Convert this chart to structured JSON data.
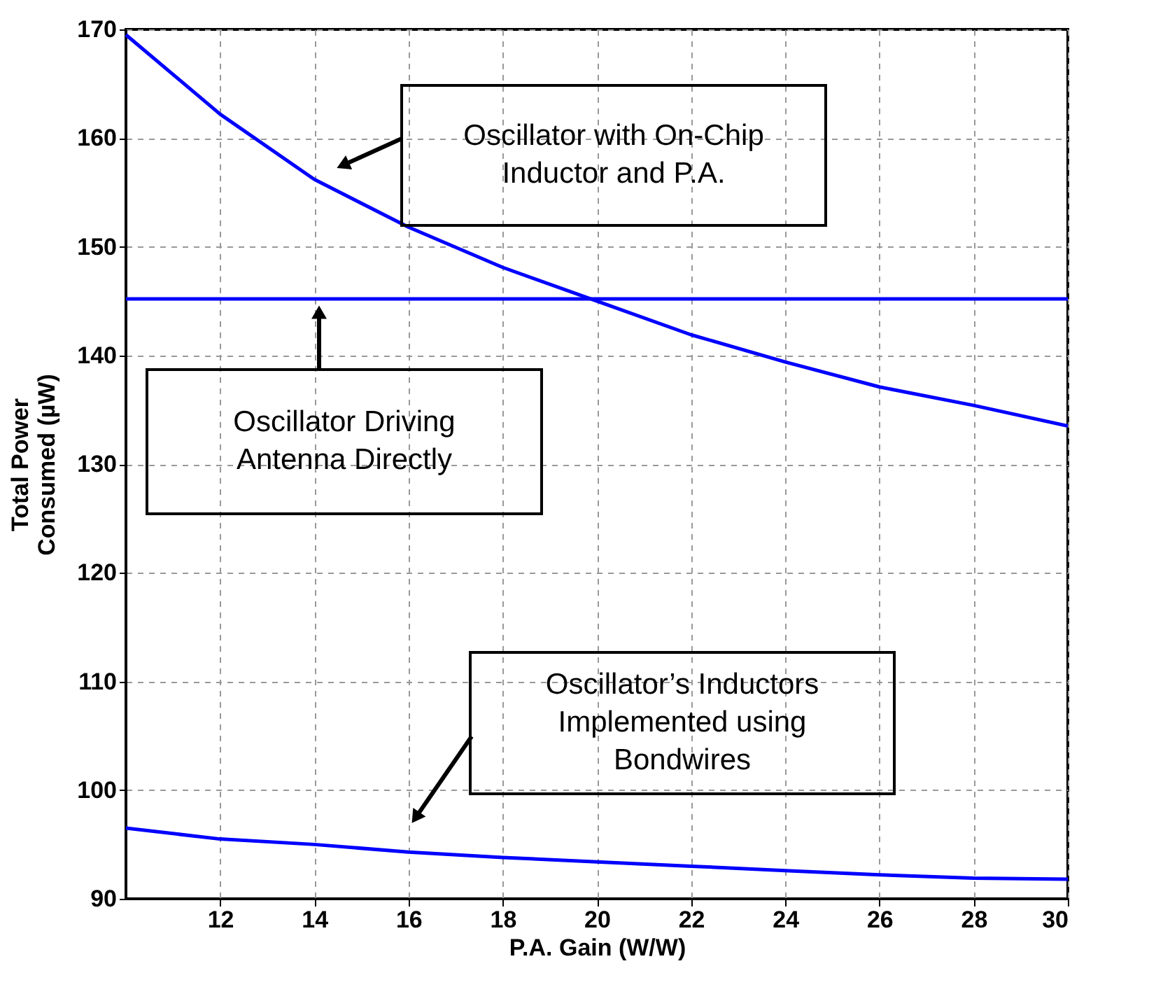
{
  "chart_data": {
    "type": "line",
    "xlabel": "P.A. Gain (W/W)",
    "ylabel": "Total Power\nConsumed (µW)",
    "x": [
      10,
      12,
      14,
      16,
      18,
      20,
      22,
      24,
      26,
      28,
      30
    ],
    "series": [
      {
        "color": "#0000ff",
        "values": [
          169.5,
          162.2,
          156.2,
          151.8,
          148.1,
          145.0,
          141.9,
          139.4,
          137.1,
          135.4,
          133.5
        ]
      },
      {
        "color": "#0000ff",
        "values": [
          145.2,
          145.2,
          145.2,
          145.2,
          145.2,
          145.2,
          145.2,
          145.2,
          145.2,
          145.2,
          145.2
        ]
      },
      {
        "color": "#0000ff",
        "values": [
          96.5,
          95.5,
          95.0,
          94.3,
          93.8,
          93.4,
          93.0,
          92.6,
          92.2,
          91.9,
          91.8
        ]
      }
    ],
    "annotations": [
      "Oscillator with On-Chip\nInductor and P.A.",
      "Oscillator Driving\nAntenna Directly",
      "Oscillator’s Inductors\nImplemented using\nBondwires"
    ],
    "xlim": [
      10,
      30
    ],
    "xticks": [
      12,
      14,
      16,
      18,
      20,
      22,
      24,
      26,
      28,
      30
    ],
    "ylim": [
      90,
      170
    ],
    "yticks": [
      90,
      100,
      110,
      120,
      130,
      140,
      150,
      160,
      170
    ],
    "grid": true,
    "legend": false,
    "line_style": "solid",
    "marker": "none"
  }
}
